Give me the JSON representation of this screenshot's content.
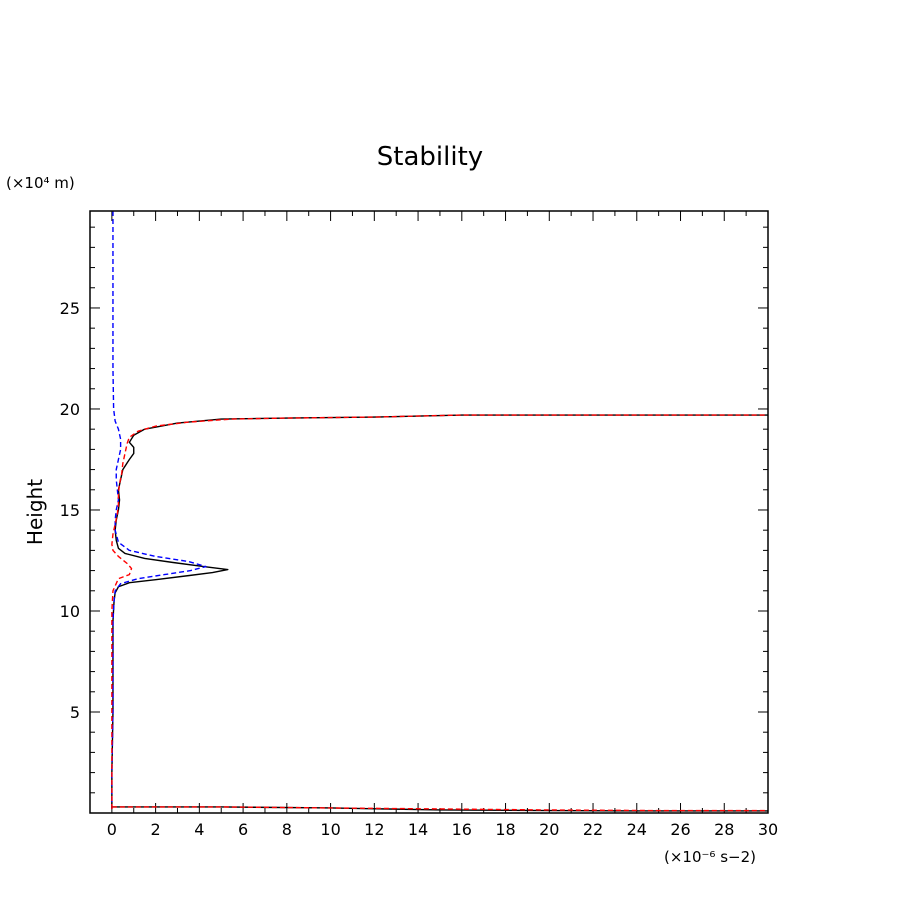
{
  "chart_data": {
    "type": "line",
    "title": "Stability",
    "ylabel": "Height",
    "y_unit": "(×10⁴ m)",
    "x_unit": "(×10⁻⁶ s−2)",
    "xlim": [
      -1,
      30
    ],
    "ylim": [
      0,
      29.8
    ],
    "x_ticks": [
      0,
      2,
      4,
      6,
      8,
      10,
      12,
      14,
      16,
      18,
      20,
      22,
      24,
      26,
      28,
      30
    ],
    "y_ticks": [
      5,
      10,
      15,
      20,
      25
    ],
    "colors": {
      "series_1": "#000000",
      "series_2": "#0000ff",
      "series_3": "#ff0000"
    },
    "series": [
      {
        "style": "solid",
        "color": "#000000",
        "points": [
          [
            0.0,
            0.2
          ],
          [
            0.0,
            0.5
          ],
          [
            0.0,
            2
          ],
          [
            0.05,
            5
          ],
          [
            0.05,
            8
          ],
          [
            0.05,
            9.5
          ],
          [
            0.1,
            10.5
          ],
          [
            0.15,
            10.9
          ],
          [
            0.3,
            11.2
          ],
          [
            0.8,
            11.4
          ],
          [
            2.0,
            11.55
          ],
          [
            3.5,
            11.75
          ],
          [
            4.6,
            11.9
          ],
          [
            5.3,
            12.05
          ],
          [
            4.2,
            12.2
          ],
          [
            2.8,
            12.4
          ],
          [
            1.5,
            12.6
          ],
          [
            0.6,
            12.85
          ],
          [
            0.3,
            13.1
          ],
          [
            0.2,
            13.5
          ],
          [
            0.15,
            14.0
          ],
          [
            0.2,
            14.5
          ],
          [
            0.3,
            15.0
          ],
          [
            0.35,
            15.5
          ],
          [
            0.3,
            16.0
          ],
          [
            0.4,
            16.5
          ],
          [
            0.5,
            17.0
          ],
          [
            0.8,
            17.5
          ],
          [
            1.0,
            17.8
          ],
          [
            1.0,
            18.1
          ],
          [
            0.8,
            18.35
          ],
          [
            1.0,
            18.7
          ],
          [
            1.5,
            19.0
          ],
          [
            3.0,
            19.3
          ],
          [
            5.0,
            19.5
          ],
          [
            8.0,
            19.55
          ],
          [
            12.0,
            19.6
          ],
          [
            16.0,
            19.7
          ],
          [
            20.0,
            19.7
          ],
          [
            25.0,
            19.7
          ],
          [
            30.0,
            19.7
          ]
        ]
      },
      {
        "style": "dashed",
        "color": "#0000ff",
        "points": [
          [
            0.05,
            29.8
          ],
          [
            0.05,
            25
          ],
          [
            0.05,
            22
          ],
          [
            0.08,
            20
          ],
          [
            0.15,
            19.4
          ],
          [
            0.3,
            19.0
          ],
          [
            0.4,
            18.5
          ],
          [
            0.4,
            18.0
          ],
          [
            0.3,
            17.5
          ],
          [
            0.2,
            17.0
          ],
          [
            0.2,
            16.5
          ],
          [
            0.25,
            16.0
          ],
          [
            0.3,
            15.5
          ],
          [
            0.2,
            15.0
          ],
          [
            0.15,
            14.5
          ],
          [
            0.15,
            14.0
          ],
          [
            0.3,
            13.4
          ],
          [
            0.8,
            13.0
          ],
          [
            2.0,
            12.7
          ],
          [
            3.5,
            12.45
          ],
          [
            4.3,
            12.2
          ],
          [
            3.6,
            12.0
          ],
          [
            2.4,
            11.8
          ],
          [
            1.2,
            11.6
          ],
          [
            0.4,
            11.35
          ],
          [
            0.15,
            11.0
          ],
          [
            0.1,
            10.5
          ],
          [
            0.05,
            9.5
          ],
          [
            0.05,
            8
          ],
          [
            0.05,
            5
          ],
          [
            0.0,
            2
          ],
          [
            0.0,
            0.5
          ],
          [
            0.0,
            0.2
          ]
        ]
      },
      {
        "style": "dashed",
        "color": "#ff0000",
        "points": [
          [
            0.0,
            0.2
          ],
          [
            0.0,
            2
          ],
          [
            0.0,
            5
          ],
          [
            0.0,
            8
          ],
          [
            0.0,
            10
          ],
          [
            0.05,
            11.0
          ],
          [
            0.3,
            11.6
          ],
          [
            0.8,
            11.8
          ],
          [
            0.9,
            12.1
          ],
          [
            0.7,
            12.35
          ],
          [
            0.3,
            12.7
          ],
          [
            0.05,
            13.0
          ],
          [
            0.0,
            13.3
          ],
          [
            0.05,
            13.8
          ],
          [
            0.15,
            14.3
          ],
          [
            0.25,
            14.8
          ],
          [
            0.3,
            15.3
          ],
          [
            0.3,
            15.8
          ],
          [
            0.35,
            16.3
          ],
          [
            0.45,
            16.8
          ],
          [
            0.5,
            17.3
          ],
          [
            0.6,
            17.8
          ],
          [
            0.7,
            18.3
          ],
          [
            0.8,
            18.6
          ],
          [
            1.2,
            18.9
          ],
          [
            2.0,
            19.15
          ],
          [
            3.5,
            19.35
          ],
          [
            5.5,
            19.5
          ],
          [
            8.0,
            19.55
          ],
          [
            12.0,
            19.6
          ],
          [
            16.0,
            19.7
          ],
          [
            20.0,
            19.7
          ],
          [
            25.0,
            19.7
          ],
          [
            30.0,
            19.7
          ]
        ]
      },
      {
        "style": "solid",
        "color": "#000000",
        "points": [
          [
            0.0,
            0.3
          ],
          [
            5,
            0.3
          ],
          [
            10,
            0.25
          ],
          [
            15,
            0.15
          ],
          [
            20,
            0.12
          ],
          [
            25,
            0.1
          ],
          [
            30,
            0.1
          ]
        ]
      },
      {
        "style": "dashed",
        "color": "#ff0000",
        "points": [
          [
            0.0,
            0.3
          ],
          [
            5,
            0.3
          ],
          [
            10,
            0.25
          ],
          [
            15,
            0.2
          ],
          [
            20,
            0.15
          ],
          [
            25,
            0.12
          ],
          [
            30,
            0.12
          ]
        ]
      }
    ]
  }
}
